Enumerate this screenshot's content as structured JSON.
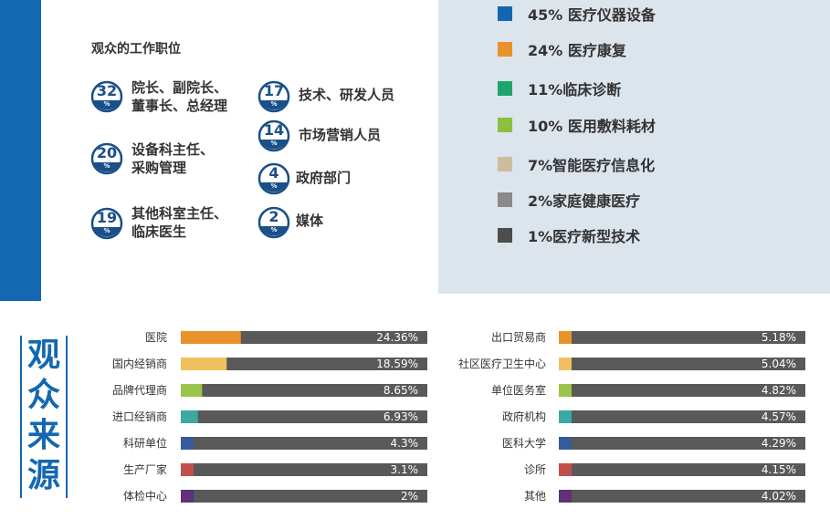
{
  "job_section": {
    "title": "观众的工作职位",
    "items": [
      {
        "value": "32",
        "unit": "%",
        "label": "院长、副院长、\n董事长、总经理"
      },
      {
        "value": "20",
        "unit": "%",
        "label": "设备科主任、\n采购管理"
      },
      {
        "value": "19",
        "unit": "%",
        "label": "其他科室主任、\n临床医生"
      },
      {
        "value": "17",
        "unit": "%",
        "label": "技术、研发人员"
      },
      {
        "value": "14",
        "unit": "%",
        "label": "市场营销人员"
      },
      {
        "value": "4",
        "unit": "%",
        "label": "政府部门"
      },
      {
        "value": "2",
        "unit": "%",
        "label": "媒体"
      }
    ]
  },
  "interest_legend": [
    {
      "text": "45% 医疗仪器设备",
      "color": "#1566b0"
    },
    {
      "text": "24% 医疗康复",
      "color": "#e8922c"
    },
    {
      "text": "11%临床诊断",
      "color": "#1fa46e"
    },
    {
      "text": "10% 医用敷料耗材",
      "color": "#8dbf3f"
    },
    {
      "text": "7%智能医疗信息化",
      "color": "#cbbd9e"
    },
    {
      "text": "2%家庭健康医疗",
      "color": "#8a8a8a"
    },
    {
      "text": "1%医疗新型技术",
      "color": "#4d4d4d"
    }
  ],
  "source_section": {
    "title": [
      "观",
      "众",
      "来",
      "源"
    ]
  },
  "chart_data": [
    {
      "type": "bar",
      "orientation": "horizontal",
      "categories": [
        "医院",
        "国内经销商",
        "品牌代理商",
        "进口经销商",
        "科研单位",
        "生产厂家",
        "体检中心"
      ],
      "values": [
        24.36,
        18.59,
        8.65,
        6.93,
        4.3,
        3.1,
        2
      ],
      "value_labels": [
        "24.36%",
        "18.59%",
        "8.65%",
        "6.93%",
        "4.3%",
        "3.1%",
        "2%"
      ],
      "colors": [
        "#e8922c",
        "#f0c060",
        "#9bc44a",
        "#3aa9a4",
        "#345c9c",
        "#c14f4a",
        "#5e3178"
      ],
      "track_color": "#595959",
      "xlim": [
        0,
        100
      ]
    },
    {
      "type": "bar",
      "orientation": "horizontal",
      "categories": [
        "出口贸易商",
        "社区医疗卫生中心",
        "单位医务室",
        "政府机构",
        "医科大学",
        "诊所",
        "其他"
      ],
      "values": [
        5.18,
        5.04,
        4.82,
        4.57,
        4.29,
        4.15,
        4.02
      ],
      "value_labels": [
        "5.18%",
        "5.04%",
        "4.82%",
        "4.57%",
        "4.29%",
        "4.15%",
        "4.02%"
      ],
      "colors": [
        "#e8922c",
        "#f0c060",
        "#9bc44a",
        "#3aa9a4",
        "#345c9c",
        "#c14f4a",
        "#5e3178"
      ],
      "track_color": "#595959",
      "xlim": [
        0,
        100
      ]
    }
  ]
}
